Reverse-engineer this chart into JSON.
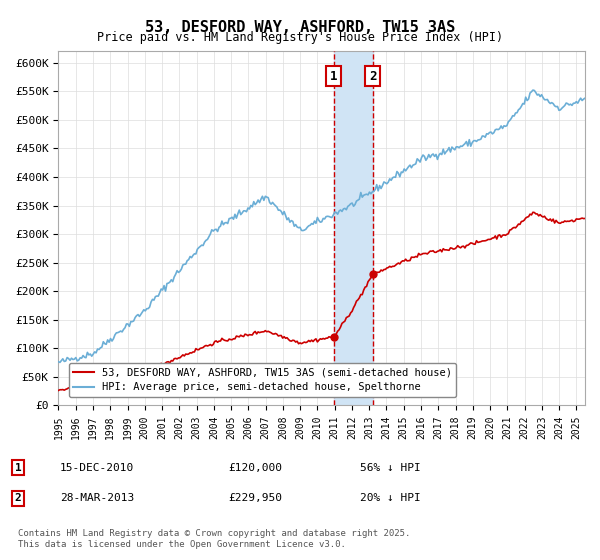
{
  "title": "53, DESFORD WAY, ASHFORD, TW15 3AS",
  "subtitle": "Price paid vs. HM Land Registry's House Price Index (HPI)",
  "xlabel": "",
  "ylabel": "",
  "ylim": [
    0,
    620000
  ],
  "yticks": [
    0,
    50000,
    100000,
    150000,
    200000,
    250000,
    300000,
    350000,
    400000,
    450000,
    500000,
    550000,
    600000
  ],
  "ytick_labels": [
    "£0",
    "£50K",
    "£100K",
    "£150K",
    "£200K",
    "£250K",
    "£300K",
    "£350K",
    "£400K",
    "£450K",
    "£500K",
    "£550K",
    "£600K"
  ],
  "hpi_color": "#6baed6",
  "price_color": "#cc0000",
  "vline_color": "#cc0000",
  "shade_color": "#d0e4f5",
  "transaction1_date": "15-DEC-2010",
  "transaction1_price": 120000,
  "transaction1_hpi_pct": "56% ↓ HPI",
  "transaction2_date": "28-MAR-2013",
  "transaction2_price": 229950,
  "transaction2_hpi_pct": "20% ↓ HPI",
  "legend_label1": "53, DESFORD WAY, ASHFORD, TW15 3AS (semi-detached house)",
  "legend_label2": "HPI: Average price, semi-detached house, Spelthorne",
  "footnote": "Contains HM Land Registry data © Crown copyright and database right 2025.\nThis data is licensed under the Open Government Licence v3.0.",
  "background_color": "#ffffff",
  "grid_color": "#dddddd"
}
